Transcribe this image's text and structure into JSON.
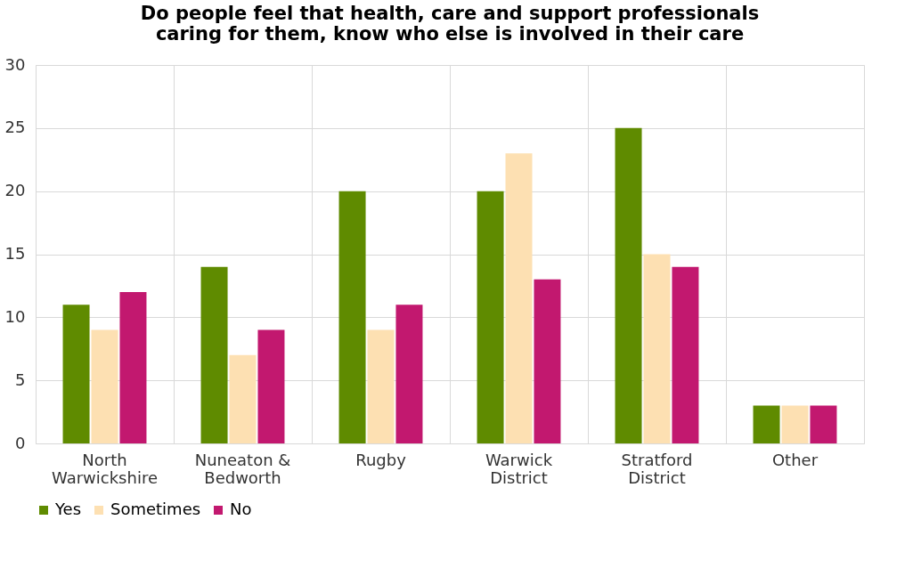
{
  "chart_data": {
    "type": "bar",
    "title": "Do people feel that health, care and support professionals\ncaring for them, know who else is involved in their care",
    "categories": [
      "North Warwickshire",
      "Nuneaton & Bedworth",
      "Rugby",
      "Warwick District",
      "Stratford District",
      "Other"
    ],
    "series": [
      {
        "name": "Yes",
        "color": "#5f8b00",
        "values": [
          11,
          14,
          20,
          20,
          25,
          3
        ]
      },
      {
        "name": "Sometimes",
        "color": "#fde0b2",
        "values": [
          9,
          7,
          9,
          23,
          15,
          3
        ]
      },
      {
        "name": "No",
        "color": "#c2186f",
        "values": [
          12,
          9,
          11,
          13,
          14,
          3
        ]
      }
    ],
    "ylim": [
      0,
      30
    ],
    "yticks": [
      0,
      5,
      10,
      15,
      20,
      25,
      30
    ],
    "grid": true,
    "legend": "bottom"
  }
}
